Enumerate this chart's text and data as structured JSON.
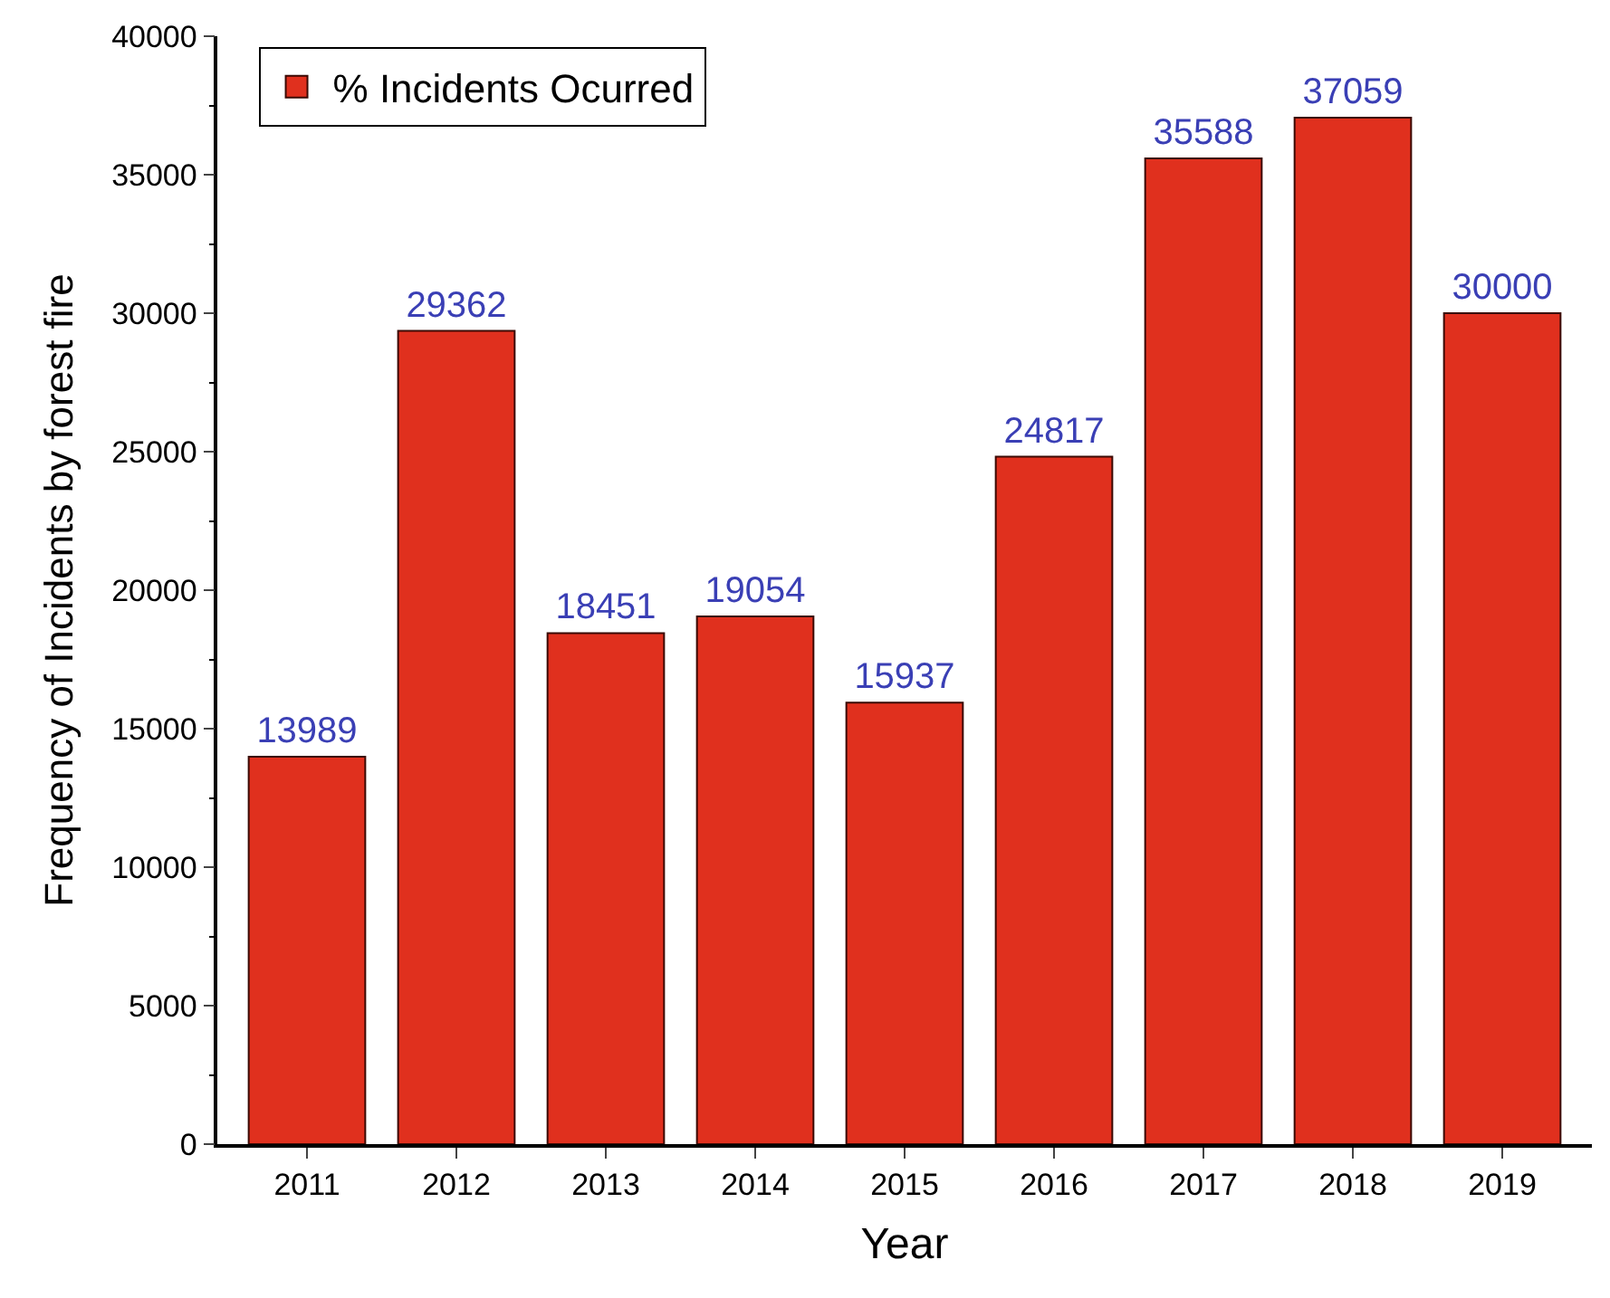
{
  "chart_data": {
    "type": "bar",
    "xlabel": "Year",
    "ylabel": "Frequency of Incidents by forest fire",
    "categories": [
      "2011",
      "2012",
      "2013",
      "2014",
      "2015",
      "2016",
      "2017",
      "2018",
      "2019"
    ],
    "series": [
      {
        "name": "% Incidents Ocurred",
        "color": "#e0301e",
        "values": [
          13989,
          29362,
          18451,
          19054,
          15937,
          24817,
          35588,
          37059,
          30000
        ]
      }
    ],
    "ylim": [
      0,
      40000
    ],
    "yticks": [
      0,
      5000,
      10000,
      15000,
      20000,
      25000,
      30000,
      35000,
      40000
    ],
    "data_labels": true,
    "legend": "top left"
  }
}
